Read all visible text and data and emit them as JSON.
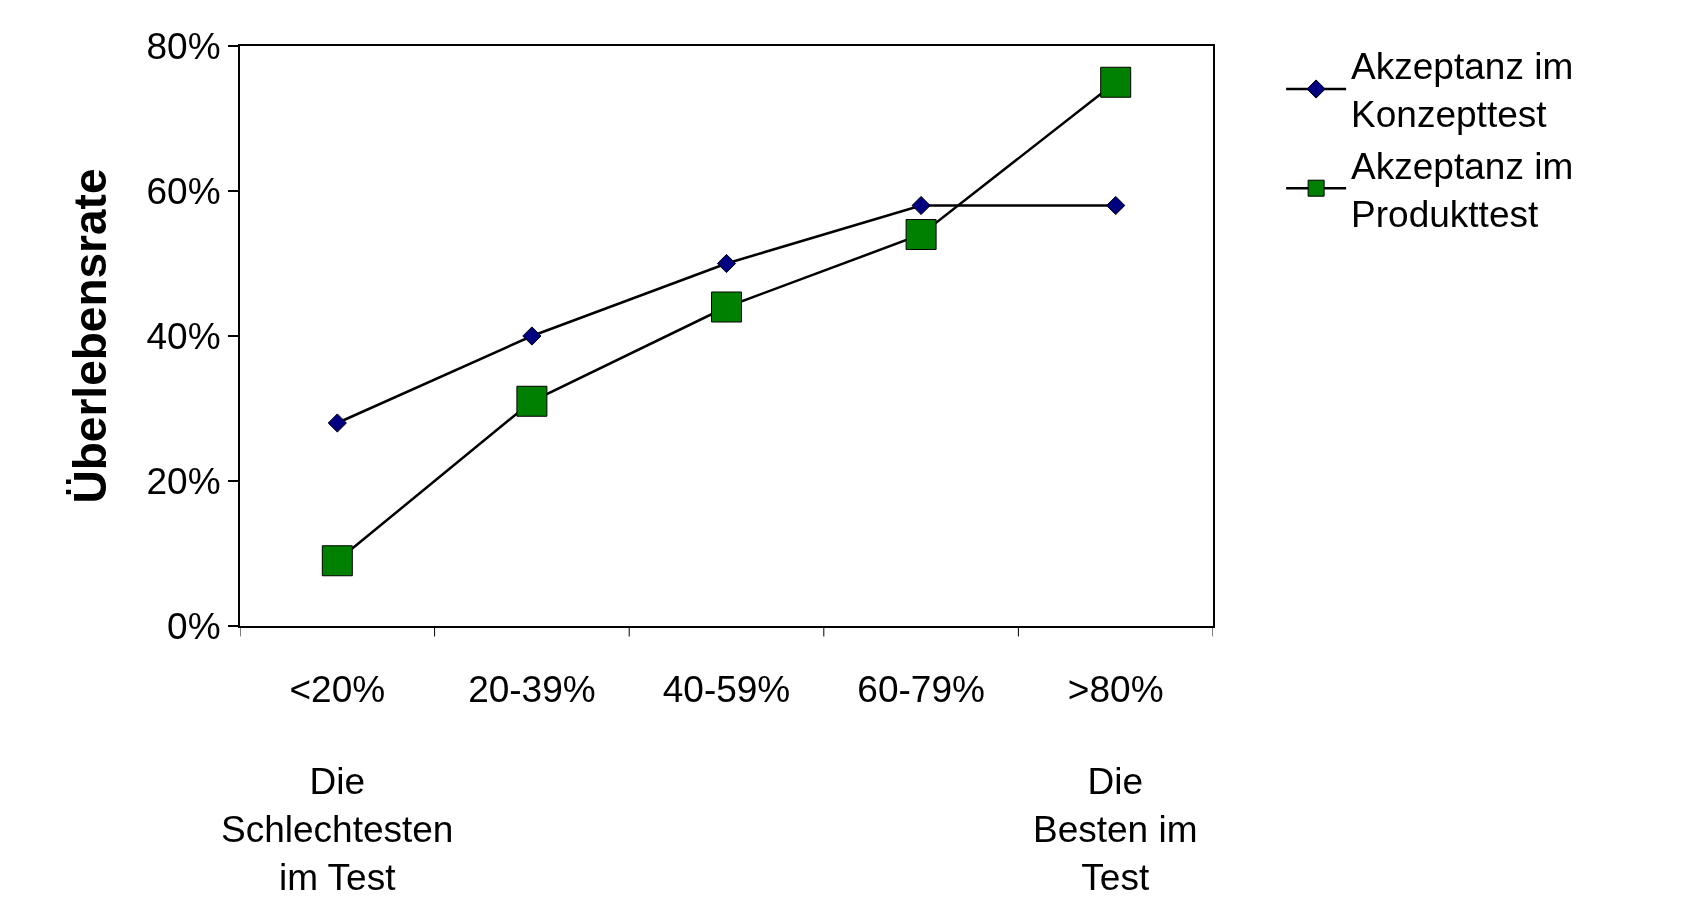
{
  "chart_data": {
    "type": "line",
    "ylabel": "Überlebensrate",
    "categories": [
      "<20%",
      "20-39%",
      "40-59%",
      "60-79%",
      ">80%"
    ],
    "series": [
      {
        "name": "Akzeptanz im Konzepttest",
        "color": "#000080",
        "marker": "diamond",
        "values": [
          28,
          40,
          50,
          58,
          58
        ]
      },
      {
        "name": "Akzeptanz im Produkttest",
        "color": "#008000",
        "marker": "square",
        "values": [
          9,
          31,
          44,
          54,
          75
        ]
      }
    ],
    "ylim": [
      0,
      80
    ],
    "yticks": [
      {
        "value": 0,
        "label": "0%"
      },
      {
        "value": 20,
        "label": "20%"
      },
      {
        "value": 40,
        "label": "40%"
      },
      {
        "value": 60,
        "label": "60%"
      },
      {
        "value": 80,
        "label": "80%"
      }
    ],
    "annotations": [
      "Die Schlechtesten im Test",
      "Die Besten im Test"
    ],
    "grid": false,
    "legend": "top right",
    "line_style": "solid"
  }
}
